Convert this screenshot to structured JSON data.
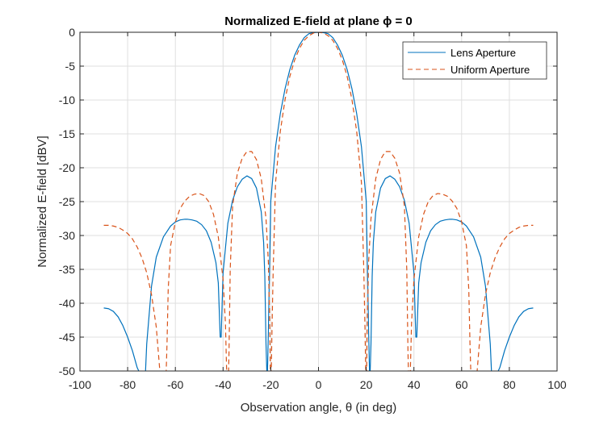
{
  "chart_data": {
    "type": "line",
    "title": "Normalized E-field at plane ϕ = 0",
    "xlabel": "Observation angle, θ (in deg)",
    "ylabel": "Normalized E-field [dBV]",
    "xlim": [
      -100,
      100
    ],
    "ylim": [
      -50,
      0
    ],
    "xticks": [
      -100,
      -80,
      -60,
      -40,
      -20,
      0,
      20,
      40,
      60,
      80,
      100
    ],
    "yticks": [
      0,
      -5,
      -10,
      -15,
      -20,
      -25,
      -30,
      -35,
      -40,
      -45,
      -50
    ],
    "grid": true,
    "legend_position": "top-right",
    "series": [
      {
        "name": "Lens Aperture",
        "color": "#0072BD",
        "style": "solid",
        "x": [
          -90,
          -88,
          -86,
          -84,
          -82,
          -80,
          -78,
          -76,
          -74,
          -72.5,
          -72,
          -70,
          -68,
          -65,
          -62,
          -60,
          -58,
          -56,
          -55,
          -53,
          -51,
          -49,
          -47,
          -45,
          -43,
          -42,
          -41.2,
          -40.8,
          -40,
          -38,
          -36,
          -34,
          -32,
          -30,
          -28,
          -26,
          -24,
          -23,
          -22.5,
          -22,
          -21.5,
          -21,
          -20,
          -18,
          -16,
          -14,
          -12,
          -10,
          -8,
          -6,
          -4,
          -2,
          0,
          2,
          4,
          6,
          8,
          10,
          12,
          14,
          16,
          18,
          20,
          21,
          21.5,
          22,
          22.5,
          23,
          24,
          26,
          28,
          30,
          32,
          34,
          36,
          38,
          40,
          40.8,
          41.2,
          42,
          43,
          45,
          47,
          49,
          51,
          53,
          55,
          56,
          58,
          60,
          62,
          65,
          68,
          70,
          72,
          72.5,
          74,
          76,
          78,
          80,
          82,
          84,
          86,
          88,
          90
        ],
        "y": [
          -40.7,
          -40.8,
          -41.2,
          -42,
          -43.3,
          -45,
          -47,
          -49.5,
          -51,
          -50,
          -46,
          -37.5,
          -33.2,
          -30.2,
          -28.6,
          -28,
          -27.7,
          -27.6,
          -27.6,
          -27.7,
          -27.9,
          -28.4,
          -29.3,
          -31,
          -34,
          -37,
          -45,
          -45,
          -35.5,
          -28.2,
          -24.8,
          -22.8,
          -21.7,
          -21.2,
          -21.6,
          -23,
          -26.5,
          -31,
          -36,
          -46,
          -52,
          -44,
          -24.9,
          -16.9,
          -12,
          -8.3,
          -5.5,
          -3.4,
          -1.9,
          -0.8,
          -0.2,
          -0.05,
          0,
          -0.05,
          -0.2,
          -0.8,
          -1.9,
          -3.4,
          -5.5,
          -8.3,
          -12,
          -16.9,
          -24.9,
          -44,
          -52,
          -46,
          -36,
          -31,
          -26.5,
          -23,
          -21.6,
          -21.2,
          -21.7,
          -22.8,
          -24.8,
          -28.2,
          -35.5,
          -45,
          -45,
          -37,
          -34,
          -31,
          -29.3,
          -28.4,
          -27.9,
          -27.7,
          -27.6,
          -27.6,
          -27.7,
          -28,
          -28.6,
          -30.2,
          -33.2,
          -37.5,
          -46,
          -50,
          -51,
          -49.5,
          -47,
          -45,
          -43.3,
          -42,
          -41.2,
          -40.8,
          -40.7
        ]
      },
      {
        "name": "Uniform Aperture",
        "color": "#D95319",
        "style": "dashed",
        "x": [
          -90,
          -88,
          -86,
          -84,
          -82,
          -80,
          -78,
          -76,
          -74,
          -72,
          -70,
          -68,
          -66.5,
          -65,
          -64,
          -63.5,
          -63,
          -62,
          -60,
          -58,
          -56,
          -54,
          -52,
          -50,
          -48,
          -46,
          -44,
          -42,
          -40,
          -39,
          -38.5,
          -38,
          -37.5,
          -37,
          -36,
          -34,
          -32,
          -30,
          -28,
          -26,
          -24,
          -22,
          -21,
          -20.5,
          -20,
          -19.5,
          -19,
          -18,
          -16,
          -14,
          -12,
          -10,
          -8,
          -6,
          -4,
          -2,
          0,
          2,
          4,
          6,
          8,
          10,
          12,
          14,
          16,
          18,
          19,
          19.5,
          20,
          20.5,
          21,
          22,
          24,
          26,
          28,
          30,
          32,
          34,
          36,
          37,
          37.5,
          38,
          38.5,
          39,
          40,
          42,
          44,
          46,
          48,
          50,
          52,
          54,
          56,
          58,
          60,
          62,
          63,
          63.5,
          64,
          65,
          66.5,
          68,
          70,
          72,
          74,
          76,
          78,
          80,
          82,
          84,
          86,
          88,
          90
        ],
        "y": [
          -28.5,
          -28.5,
          -28.6,
          -28.8,
          -29.2,
          -29.7,
          -30.5,
          -31.7,
          -33.3,
          -35.5,
          -38.7,
          -43.5,
          -50,
          -58,
          -52,
          -46,
          -38,
          -31.5,
          -28,
          -26,
          -24.9,
          -24.2,
          -23.9,
          -23.8,
          -24.1,
          -25,
          -26.9,
          -30.2,
          -36.5,
          -43,
          -50,
          -55,
          -47,
          -35,
          -25.6,
          -20.8,
          -18.6,
          -17.6,
          -17.6,
          -18.8,
          -21.6,
          -27.5,
          -34,
          -42,
          -54,
          -44,
          -35.2,
          -22.2,
          -14.6,
          -9.9,
          -6.5,
          -4.1,
          -2.4,
          -1.2,
          -0.5,
          -0.1,
          0,
          -0.1,
          -0.5,
          -1.2,
          -2.4,
          -4.1,
          -6.5,
          -9.9,
          -14.6,
          -22.2,
          -35.2,
          -44,
          -54,
          -42,
          -34,
          -27.5,
          -21.6,
          -18.8,
          -17.6,
          -17.6,
          -18.6,
          -20.8,
          -25.6,
          -35,
          -47,
          -55,
          -50,
          -43,
          -36.5,
          -30.2,
          -26.9,
          -25,
          -24.1,
          -23.8,
          -23.9,
          -24.2,
          -24.9,
          -26,
          -28,
          -31.5,
          -38,
          -46,
          -52,
          -58,
          -50,
          -43.5,
          -38.7,
          -35.5,
          -33.3,
          -31.7,
          -30.5,
          -29.7,
          -29.2,
          -28.8,
          -28.6,
          -28.5,
          -28.5
        ]
      }
    ]
  }
}
